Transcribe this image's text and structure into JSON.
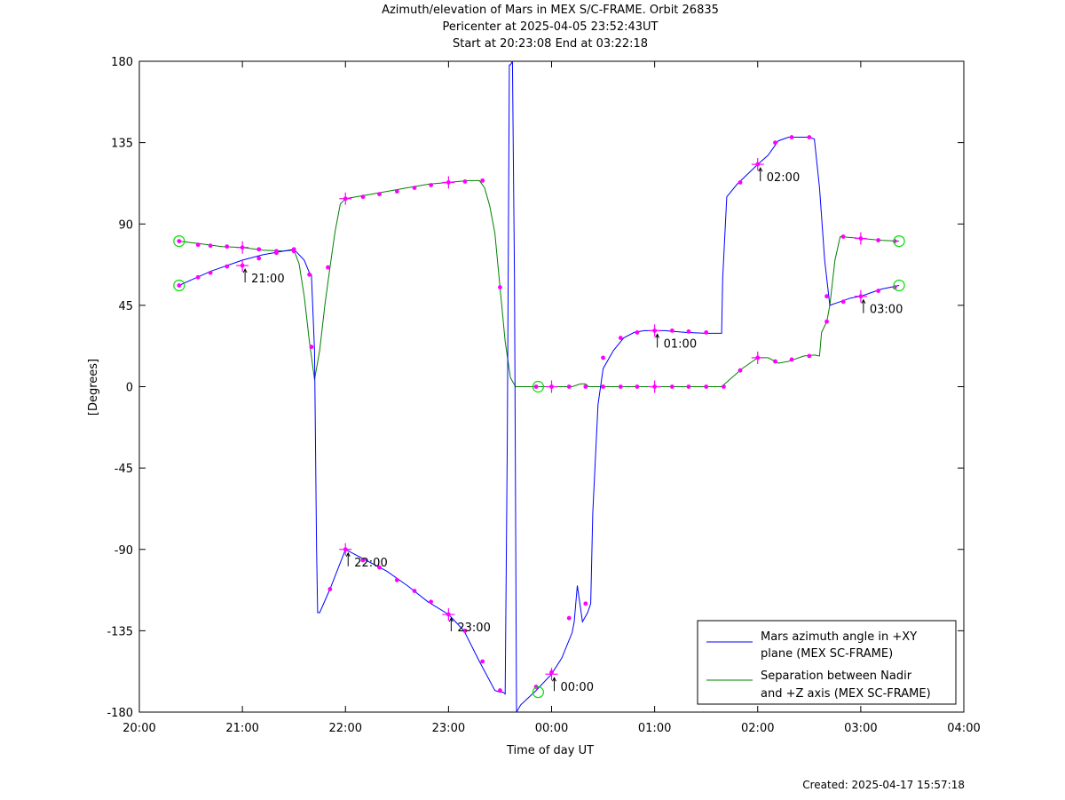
{
  "header": {
    "title": "Azimuth/elevation of Mars in MEX S/C-FRAME.  Orbit 26835",
    "subtitle": "Pericenter at 2025-04-05 23:52:43UT",
    "range": "Start at 20:23:08 End at 03:22:18"
  },
  "footer": {
    "created": "Created: 2025-04-17 15:57:18"
  },
  "chart_data": {
    "type": "line",
    "title": "Azimuth/elevation of Mars in MEX S/C-FRAME.  Orbit 26835",
    "xlabel": "Time of day UT",
    "ylabel": "[Degrees]",
    "xlim_hours": [
      20,
      28
    ],
    "ylim": [
      -180,
      180
    ],
    "x_ticks": [
      {
        "h": 20,
        "label": "20:00"
      },
      {
        "h": 21,
        "label": "21:00"
      },
      {
        "h": 22,
        "label": "22:00"
      },
      {
        "h": 23,
        "label": "23:00"
      },
      {
        "h": 24,
        "label": "00:00"
      },
      {
        "h": 25,
        "label": "01:00"
      },
      {
        "h": 26,
        "label": "02:00"
      },
      {
        "h": 27,
        "label": "03:00"
      },
      {
        "h": 28,
        "label": "04:00"
      }
    ],
    "y_ticks": [
      180,
      135,
      90,
      45,
      0,
      -45,
      -90,
      -135,
      -180
    ],
    "legend": {
      "placement": "bottom-right"
    },
    "colors": {
      "azimuth": "#0000ff",
      "separation": "#008000",
      "markers": "#ff00ff",
      "endpoints": "#00dd00"
    },
    "series": [
      {
        "name": "Mars azimuth angle in +XY plane (MEX SC-FRAME)",
        "legend_lines": [
          "Mars azimuth angle in +XY",
          "plane (MEX SC-FRAME)"
        ],
        "color": "#0000ff",
        "points": [
          [
            20.386,
            56
          ],
          [
            20.5,
            59
          ],
          [
            20.7,
            64
          ],
          [
            20.85,
            67
          ],
          [
            21.0,
            70
          ],
          [
            21.2,
            73
          ],
          [
            21.4,
            75
          ],
          [
            21.5,
            76
          ],
          [
            21.6,
            70
          ],
          [
            21.65,
            63
          ],
          [
            21.67,
            62
          ],
          [
            21.7,
            20
          ],
          [
            21.72,
            -90
          ],
          [
            21.73,
            -125
          ],
          [
            21.75,
            -125
          ],
          [
            21.85,
            -112
          ],
          [
            22.0,
            -90
          ],
          [
            22.1,
            -93
          ],
          [
            22.2,
            -96
          ],
          [
            22.4,
            -102
          ],
          [
            22.6,
            -110
          ],
          [
            22.8,
            -119
          ],
          [
            23.0,
            -126
          ],
          [
            23.15,
            -135
          ],
          [
            23.3,
            -152
          ],
          [
            23.45,
            -168
          ],
          [
            23.5,
            -169
          ],
          [
            23.53,
            -169
          ],
          [
            23.55,
            -170
          ],
          [
            23.57,
            -30
          ],
          [
            23.59,
            178
          ],
          [
            23.6,
            178
          ],
          [
            23.62,
            180
          ],
          [
            23.64,
            60
          ],
          [
            23.66,
            -180
          ],
          [
            23.7,
            -176
          ],
          [
            23.85,
            -168
          ],
          [
            24.0,
            -159
          ],
          [
            24.1,
            -150
          ],
          [
            24.2,
            -136
          ],
          [
            24.22,
            -130
          ],
          [
            24.25,
            -110
          ],
          [
            24.3,
            -130
          ],
          [
            24.35,
            -125
          ],
          [
            24.38,
            -120
          ],
          [
            24.4,
            -70
          ],
          [
            24.45,
            -10
          ],
          [
            24.5,
            10
          ],
          [
            24.6,
            20
          ],
          [
            24.7,
            27
          ],
          [
            24.8,
            30
          ],
          [
            24.9,
            31
          ],
          [
            25.0,
            31
          ],
          [
            25.1,
            31
          ],
          [
            25.3,
            30
          ],
          [
            25.5,
            29.5
          ],
          [
            25.65,
            29.5
          ],
          [
            25.66,
            60
          ],
          [
            25.7,
            105
          ],
          [
            25.8,
            112
          ],
          [
            26.0,
            123
          ],
          [
            26.1,
            128
          ],
          [
            26.2,
            136
          ],
          [
            26.3,
            138
          ],
          [
            26.4,
            138
          ],
          [
            26.5,
            138
          ],
          [
            26.55,
            137
          ],
          [
            26.6,
            110
          ],
          [
            26.65,
            70
          ],
          [
            26.7,
            45
          ],
          [
            26.75,
            46
          ],
          [
            26.8,
            47
          ],
          [
            26.9,
            49
          ],
          [
            27.0,
            50
          ],
          [
            27.1,
            52
          ],
          [
            27.2,
            54
          ],
          [
            27.372,
            56
          ]
        ],
        "markers": [
          [
            20.386,
            56
          ],
          [
            20.57,
            60.5
          ],
          [
            20.69,
            63
          ],
          [
            20.85,
            66.5
          ],
          [
            21.0,
            67
          ],
          [
            21.16,
            71
          ],
          [
            21.33,
            74
          ],
          [
            21.5,
            76
          ],
          [
            21.65,
            62
          ],
          [
            21.85,
            -112
          ],
          [
            22.0,
            -90
          ],
          [
            22.17,
            -96
          ],
          [
            22.33,
            -100
          ],
          [
            22.5,
            -107
          ],
          [
            22.67,
            -113
          ],
          [
            22.83,
            -119
          ],
          [
            23.0,
            -126
          ],
          [
            23.16,
            -135
          ],
          [
            23.33,
            -152
          ],
          [
            23.5,
            -168
          ],
          [
            23.85,
            -166
          ],
          [
            24.0,
            -158
          ],
          [
            24.17,
            -128
          ],
          [
            24.33,
            -120
          ],
          [
            24.5,
            16
          ],
          [
            24.67,
            27
          ],
          [
            24.83,
            30
          ],
          [
            25.0,
            31
          ],
          [
            25.17,
            31
          ],
          [
            25.33,
            30.5
          ],
          [
            25.5,
            30
          ],
          [
            25.83,
            113
          ],
          [
            26.0,
            123
          ],
          [
            26.17,
            135
          ],
          [
            26.33,
            138
          ],
          [
            26.5,
            138
          ],
          [
            26.67,
            50
          ],
          [
            26.83,
            47
          ],
          [
            27.0,
            50
          ],
          [
            27.17,
            53
          ],
          [
            27.33,
            55
          ]
        ],
        "time_labels": [
          {
            "h": 21.0,
            "v": 67,
            "label": "21:00"
          },
          {
            "h": 22.0,
            "v": -90,
            "label": "22:00"
          },
          {
            "h": 23.0,
            "v": -126,
            "label": "23:00"
          },
          {
            "h": 24.0,
            "v": -159,
            "label": "00:00"
          },
          {
            "h": 25.0,
            "v": 31,
            "label": "01:00"
          },
          {
            "h": 26.0,
            "v": 123,
            "label": "02:00"
          },
          {
            "h": 27.0,
            "v": 50,
            "label": "03:00"
          }
        ]
      },
      {
        "name": "Separation between Nadir and +Z axis (MEX SC-FRAME)",
        "legend_lines": [
          "Separation between Nadir",
          "and +Z axis (MEX SC-FRAME)"
        ],
        "color": "#008000",
        "points": [
          [
            20.386,
            80.5
          ],
          [
            20.6,
            79
          ],
          [
            20.8,
            77.5
          ],
          [
            21.0,
            77
          ],
          [
            21.2,
            75.5
          ],
          [
            21.4,
            75
          ],
          [
            21.5,
            75.5
          ],
          [
            21.55,
            68
          ],
          [
            21.6,
            50
          ],
          [
            21.65,
            25
          ],
          [
            21.7,
            4
          ],
          [
            21.75,
            20
          ],
          [
            21.8,
            45
          ],
          [
            21.85,
            66
          ],
          [
            21.9,
            86
          ],
          [
            21.95,
            101
          ],
          [
            22.0,
            104
          ],
          [
            22.2,
            106
          ],
          [
            22.4,
            108
          ],
          [
            22.6,
            110
          ],
          [
            22.8,
            112
          ],
          [
            23.0,
            113
          ],
          [
            23.2,
            114
          ],
          [
            23.3,
            114
          ],
          [
            23.35,
            110
          ],
          [
            23.4,
            100
          ],
          [
            23.45,
            85
          ],
          [
            23.5,
            55
          ],
          [
            23.55,
            25
          ],
          [
            23.6,
            5
          ],
          [
            23.65,
            0
          ],
          [
            23.7,
            0
          ],
          [
            24.0,
            0
          ],
          [
            24.2,
            0
          ],
          [
            24.28,
            1.5
          ],
          [
            24.33,
            1.5
          ],
          [
            24.36,
            0
          ],
          [
            24.5,
            0
          ],
          [
            25.0,
            0
          ],
          [
            25.5,
            0
          ],
          [
            25.65,
            0
          ],
          [
            25.75,
            5
          ],
          [
            25.85,
            10
          ],
          [
            26.0,
            16
          ],
          [
            26.1,
            16
          ],
          [
            26.2,
            13
          ],
          [
            26.3,
            14
          ],
          [
            26.45,
            17
          ],
          [
            26.55,
            17.5
          ],
          [
            26.6,
            17
          ],
          [
            26.62,
            30
          ],
          [
            26.67,
            36
          ],
          [
            26.7,
            45
          ],
          [
            26.75,
            70
          ],
          [
            26.8,
            83
          ],
          [
            27.0,
            82
          ],
          [
            27.2,
            81
          ],
          [
            27.372,
            80.5
          ]
        ],
        "markers": [
          [
            20.386,
            80.5
          ],
          [
            20.57,
            78.5
          ],
          [
            20.69,
            78
          ],
          [
            20.85,
            77.5
          ],
          [
            21.0,
            77
          ],
          [
            21.16,
            76
          ],
          [
            21.33,
            75
          ],
          [
            21.5,
            75
          ],
          [
            21.67,
            22
          ],
          [
            21.83,
            66
          ],
          [
            22.0,
            104
          ],
          [
            22.17,
            105
          ],
          [
            22.33,
            106.5
          ],
          [
            22.5,
            108
          ],
          [
            22.67,
            110
          ],
          [
            22.83,
            111.5
          ],
          [
            23.0,
            113
          ],
          [
            23.16,
            113.5
          ],
          [
            23.33,
            114
          ],
          [
            23.5,
            55
          ],
          [
            23.85,
            0
          ],
          [
            24.0,
            0
          ],
          [
            24.17,
            0
          ],
          [
            24.33,
            0
          ],
          [
            24.5,
            0
          ],
          [
            24.67,
            0
          ],
          [
            24.83,
            0
          ],
          [
            25.0,
            0
          ],
          [
            25.17,
            0
          ],
          [
            25.33,
            0
          ],
          [
            25.5,
            0
          ],
          [
            25.67,
            0
          ],
          [
            25.83,
            9
          ],
          [
            26.0,
            16
          ],
          [
            26.17,
            14
          ],
          [
            26.33,
            15
          ],
          [
            26.5,
            17
          ],
          [
            26.67,
            36
          ],
          [
            26.83,
            83
          ],
          [
            27.0,
            82
          ],
          [
            27.17,
            81
          ],
          [
            27.33,
            80.5
          ]
        ]
      }
    ],
    "endpoints": [
      [
        20.386,
        80.5
      ],
      [
        20.386,
        56
      ],
      [
        27.372,
        80.5
      ],
      [
        27.372,
        56
      ],
      [
        23.87,
        0
      ],
      [
        23.87,
        -169
      ]
    ]
  }
}
